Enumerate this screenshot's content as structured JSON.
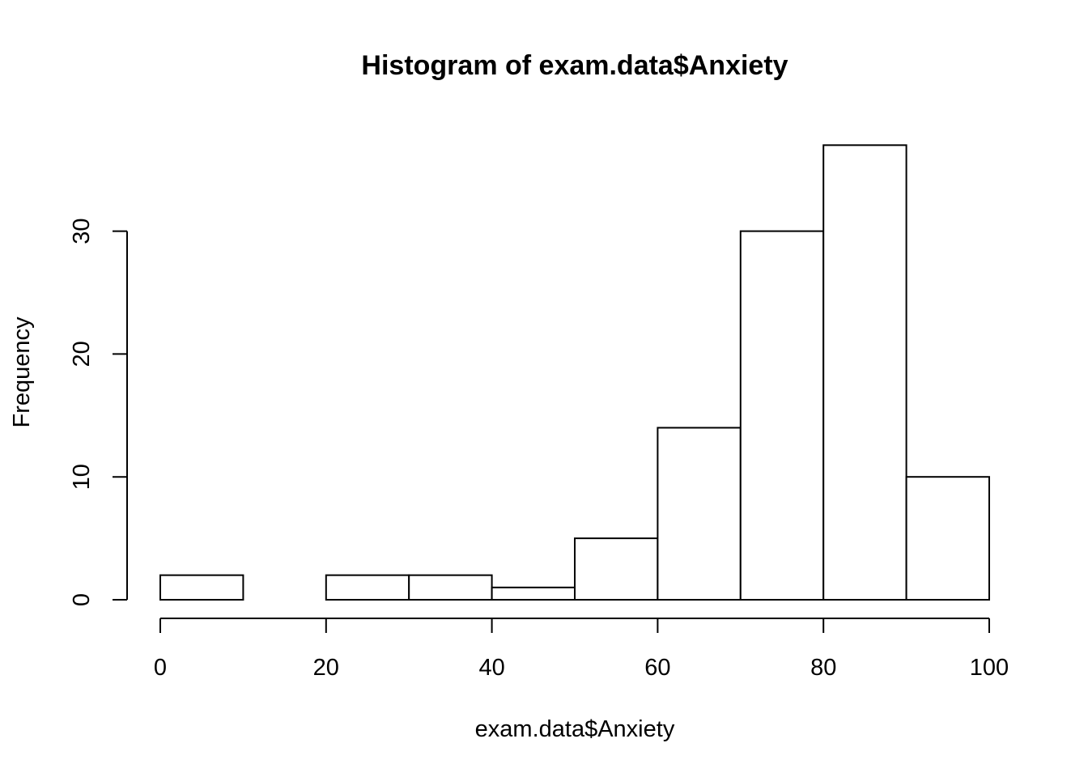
{
  "chart_data": {
    "type": "bar",
    "subtype": "histogram",
    "title": "Histogram of exam.data$Anxiety",
    "xlabel": "exam.data$Anxiety",
    "ylabel": "Frequency",
    "bins": [
      {
        "from": 0,
        "to": 10,
        "count": 2
      },
      {
        "from": 10,
        "to": 20,
        "count": 0
      },
      {
        "from": 20,
        "to": 30,
        "count": 2
      },
      {
        "from": 30,
        "to": 40,
        "count": 2
      },
      {
        "from": 40,
        "to": 50,
        "count": 1
      },
      {
        "from": 50,
        "to": 60,
        "count": 5
      },
      {
        "from": 60,
        "to": 70,
        "count": 14
      },
      {
        "from": 70,
        "to": 80,
        "count": 30
      },
      {
        "from": 80,
        "to": 90,
        "count": 37
      },
      {
        "from": 90,
        "to": 100,
        "count": 10
      }
    ],
    "xlim": [
      0,
      100
    ],
    "ylim": [
      0,
      37
    ],
    "x_ticks": [
      0,
      20,
      40,
      60,
      80,
      100
    ],
    "y_ticks": [
      0,
      10,
      20,
      30
    ],
    "grid": false,
    "legend": "none",
    "bar_fill": "#ffffff",
    "bar_stroke": "#000000"
  }
}
